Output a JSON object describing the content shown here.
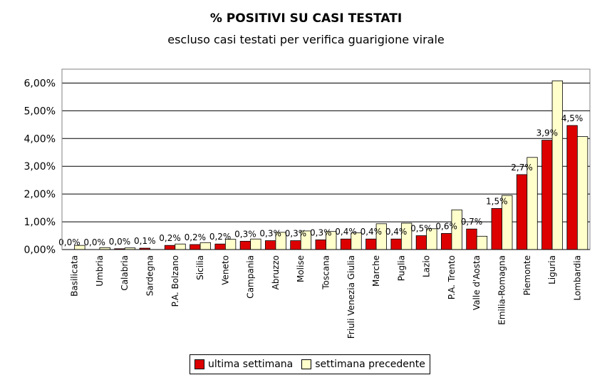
{
  "chart_data": {
    "type": "bar",
    "title": "% POSITIVI SU CASI TESTATI",
    "subtitle": "escluso casi testati per verifica guarigione virale",
    "categories": [
      "Basilicata",
      "Umbria",
      "Calabria",
      "Sardegna",
      "P.A. Bolzano",
      "Sicilia",
      "Veneto",
      "Campania",
      "Abruzzo",
      "Molise",
      "Toscana",
      "Friuli Venezia Giulia",
      "Marche",
      "Puglia",
      "Lazio",
      "P.A. Trento",
      "Valle d'Aosta",
      "Emilia-Romagna",
      "Piemonte",
      "Liguria",
      "Lombardia"
    ],
    "series": [
      {
        "name": "ultima settimana",
        "color": "#dd0000",
        "values": [
          0.0,
          0.0,
          0.03,
          0.05,
          0.15,
          0.18,
          0.2,
          0.3,
          0.32,
          0.32,
          0.35,
          0.38,
          0.38,
          0.38,
          0.5,
          0.58,
          0.74,
          1.48,
          2.7,
          3.94,
          4.47
        ],
        "labels": [
          "0,0%",
          "0,0%",
          "0,0%",
          "0,1%",
          "0,2%",
          "0,2%",
          "0,2%",
          "0,3%",
          "0,3%",
          "0,3%",
          "0,3%",
          "0,4%",
          "0,4%",
          "0,4%",
          "0,5%",
          "0,6%",
          "0,7%",
          "1,5%",
          "2,7%",
          "3,9%",
          "4,5%"
        ]
      },
      {
        "name": "settimana precedente",
        "color": "#ffffcc",
        "values": [
          0.15,
          0.07,
          0.06,
          0.0,
          0.2,
          0.25,
          0.37,
          0.38,
          0.62,
          0.67,
          0.65,
          0.6,
          0.93,
          0.95,
          0.75,
          1.43,
          0.48,
          1.95,
          3.32,
          6.08,
          4.07
        ]
      }
    ],
    "yticks": [
      "0,00%",
      "1,00%",
      "2,00%",
      "3,00%",
      "4,00%",
      "5,00%",
      "6,00%"
    ],
    "ylim": [
      0,
      6.5
    ],
    "grid": true,
    "legend": "bottom"
  }
}
